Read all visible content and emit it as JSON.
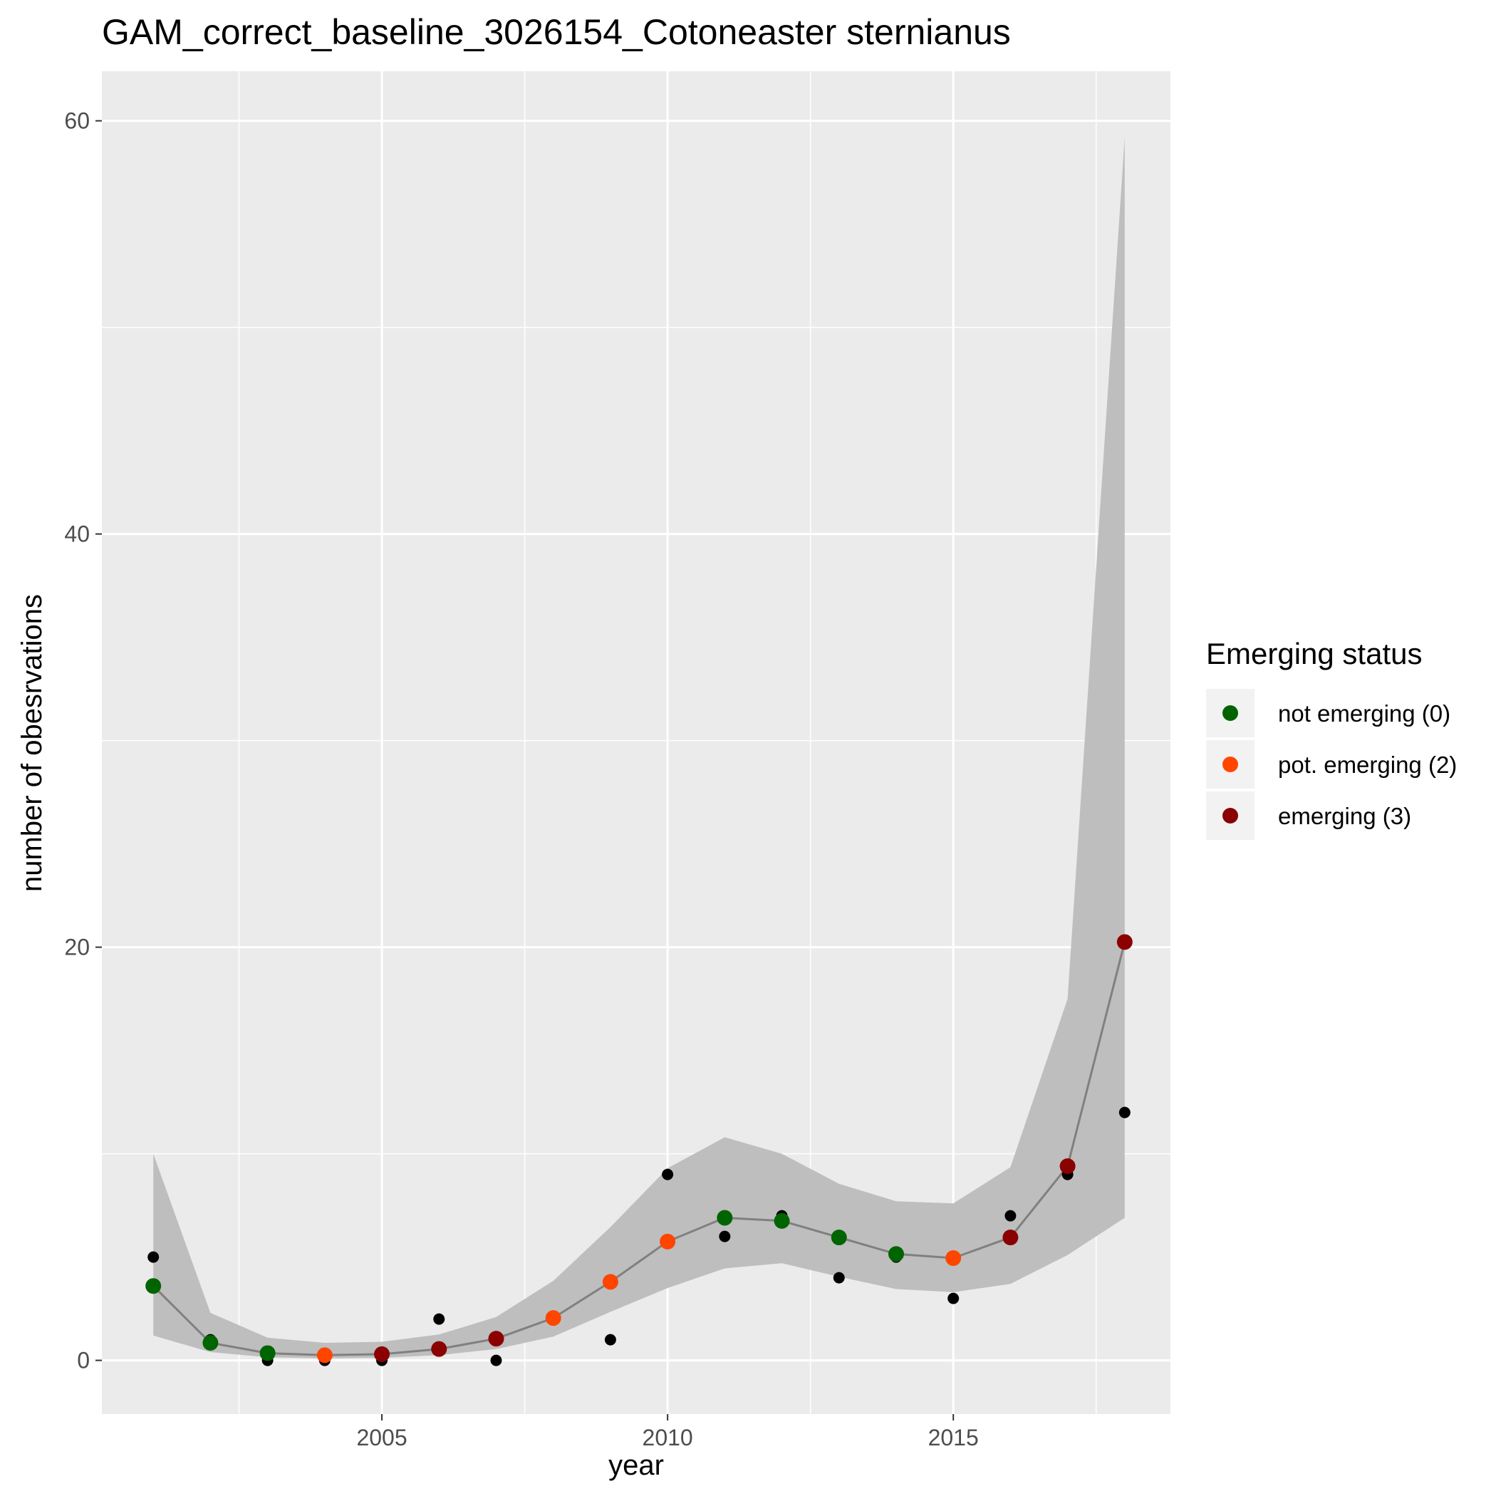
{
  "chart_data": {
    "type": "scatter",
    "title": "GAM_correct_baseline_3026154_Cotoneaster sternianus",
    "xlabel": "year",
    "ylabel": "number of obesrvations",
    "xlim": [
      2000.1,
      2018.8
    ],
    "ylim": [
      -2.6,
      62.4
    ],
    "x_ticks": [
      2005,
      2010,
      2015
    ],
    "x_tick_labels": [
      "2005",
      "2010",
      "2015"
    ],
    "y_ticks": [
      0,
      20,
      40,
      60
    ],
    "y_tick_labels": [
      "0",
      "20",
      "40",
      "60"
    ],
    "grid": true,
    "legend": {
      "title": "Emerging status",
      "position": "right",
      "entries": [
        {
          "label": "not emerging (0)",
          "color": "#006400"
        },
        {
          "label": "pot. emerging (2)",
          "color": "#FF4500"
        },
        {
          "label": "emerging (3)",
          "color": "#8B0000"
        }
      ]
    },
    "colors": {
      "panel_background": "#EBEBEB",
      "grid_major": "#FFFFFF",
      "ribbon": "#BEBEBE",
      "fit_line": "#808080",
      "observed_points": "#000000",
      "not_emerging": "#006400",
      "pot_emerging": "#FF4500",
      "emerging": "#8B0000"
    },
    "series": [
      {
        "kind": "observed",
        "x": [
          2001,
          2002,
          2003,
          2004,
          2005,
          2006,
          2007,
          2008,
          2009,
          2010,
          2011,
          2012,
          2013,
          2014,
          2015,
          2016,
          2017,
          2018
        ],
        "values": [
          5,
          1,
          0,
          0,
          0,
          2,
          0,
          2,
          1,
          9,
          6,
          7,
          4,
          5,
          3,
          7,
          9,
          12
        ]
      },
      {
        "kind": "fitted",
        "x": [
          2001,
          2002,
          2003,
          2004,
          2005,
          2006,
          2007,
          2008,
          2009,
          2010,
          2011,
          2012,
          2013,
          2014,
          2015,
          2016,
          2017,
          2018
        ],
        "values": [
          3.6,
          0.85,
          0.35,
          0.25,
          0.3,
          0.55,
          1.05,
          2.05,
          3.8,
          5.75,
          6.9,
          6.75,
          5.95,
          5.15,
          4.95,
          5.95,
          9.4,
          20.25
        ],
        "lower": [
          1.2,
          0.4,
          0.15,
          0.1,
          0.12,
          0.25,
          0.55,
          1.15,
          2.35,
          3.5,
          4.45,
          4.7,
          4.05,
          3.45,
          3.3,
          3.7,
          5.1,
          6.9
        ],
        "upper": [
          10.0,
          2.3,
          1.1,
          0.85,
          0.9,
          1.25,
          2.1,
          3.85,
          6.45,
          9.3,
          10.8,
          10.0,
          8.55,
          7.7,
          7.6,
          9.35,
          17.5,
          59.2
        ],
        "status": [
          0,
          0,
          0,
          2,
          3,
          3,
          3,
          2,
          2,
          2,
          0,
          0,
          0,
          0,
          2,
          3,
          3,
          3
        ]
      }
    ]
  }
}
